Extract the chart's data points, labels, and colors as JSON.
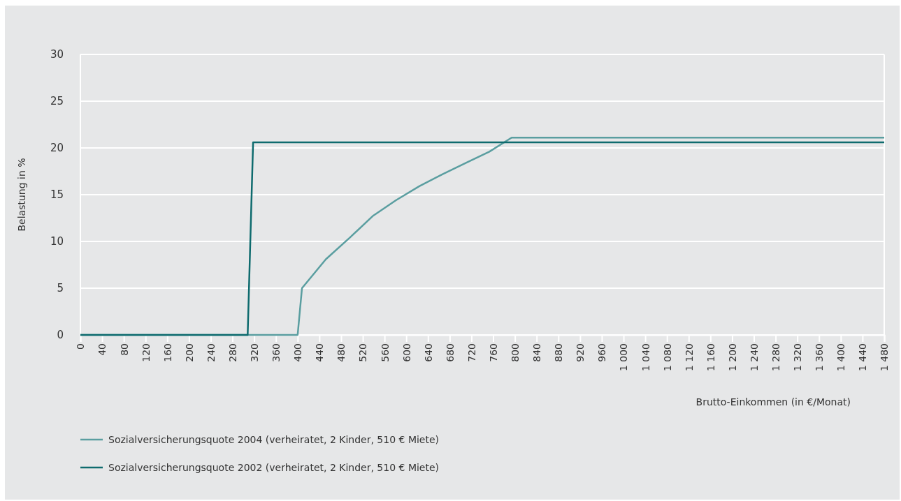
{
  "chart_data": {
    "type": "line",
    "xlabel": "Brutto-Einkommen (in €/Monat)",
    "ylabel": "Belastung in %",
    "xlim": [
      0,
      1480
    ],
    "ylim": [
      0,
      30
    ],
    "xticks": [
      0,
      40,
      80,
      120,
      160,
      200,
      240,
      280,
      320,
      360,
      400,
      440,
      480,
      520,
      560,
      600,
      640,
      680,
      720,
      760,
      800,
      840,
      880,
      920,
      960,
      {
        "value": 1000,
        "label": "1 000"
      },
      {
        "value": 1040,
        "label": "1 040"
      },
      {
        "value": 1080,
        "label": "1 080"
      },
      {
        "value": 1120,
        "label": "1 120"
      },
      {
        "value": 1160,
        "label": "1 160"
      },
      {
        "value": 1200,
        "label": "1 200"
      },
      {
        "value": 1240,
        "label": "1 240"
      },
      {
        "value": 1280,
        "label": "1 280"
      },
      {
        "value": 1320,
        "label": "1 320"
      },
      {
        "value": 1360,
        "label": "1 360"
      },
      {
        "value": 1400,
        "label": "1 400"
      },
      {
        "value": 1440,
        "label": "1 440"
      },
      {
        "value": 1480,
        "label": "1 480"
      }
    ],
    "yticks": [
      0,
      5,
      10,
      15,
      20,
      25,
      30
    ],
    "grid": "y",
    "legend": "bottom left",
    "marker": "none",
    "line_style": "solid",
    "series": [
      {
        "name": "Sozialversicherungsquote 2004 (verheiratet, 2 Kinder, 510 € Miete)",
        "color": "#5a9ea0",
        "x": [
          0,
          400,
          408,
          452,
          496,
          538,
          581,
          624,
          667,
          710,
          753,
          794,
          1480
        ],
        "values": [
          0,
          0,
          5,
          8.1,
          10.4,
          12.7,
          14.4,
          15.9,
          17.2,
          18.4,
          19.6,
          21.1,
          21.1
        ]
      },
      {
        "name": "Sozialversicherungsquote 2002 (verheiratet, 2 Kinder, 510 € Miete)",
        "color": "#0e6b6e",
        "x": [
          0,
          308,
          318,
          1480
        ],
        "values": [
          0,
          0,
          20.6,
          20.6
        ]
      }
    ]
  }
}
